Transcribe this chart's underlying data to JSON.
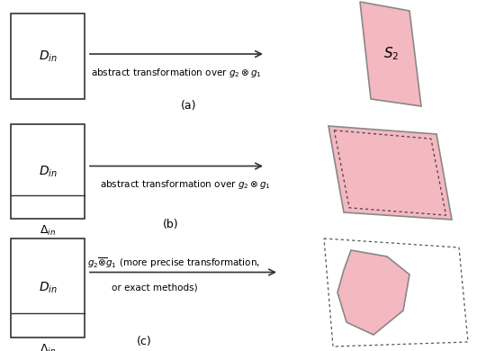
{
  "bg_color": "#ffffff",
  "pink_fill": "#f4b8c0",
  "pink_edge": "#888888",
  "box_fill": "#ffffff",
  "box_edge": "#333333",
  "arrow_color": "#333333",
  "label_a": "(a)",
  "label_b": "(b)",
  "label_c": "(c)",
  "text_arrow_a": "abstract transformation over $g_2 \\otimes g_1$",
  "text_arrow_b": "abstract transformation over $g_2 \\otimes g_1$",
  "text_arrow_c_line1": "$g_2 \\overline{\\otimes} g_1$ (more precise transformation,",
  "text_arrow_c_line2": "or exact methods)",
  "S2_label": "$S_2$",
  "Din_label": "$D_{in}$",
  "Delta_label": "$\\Delta_{in}$"
}
